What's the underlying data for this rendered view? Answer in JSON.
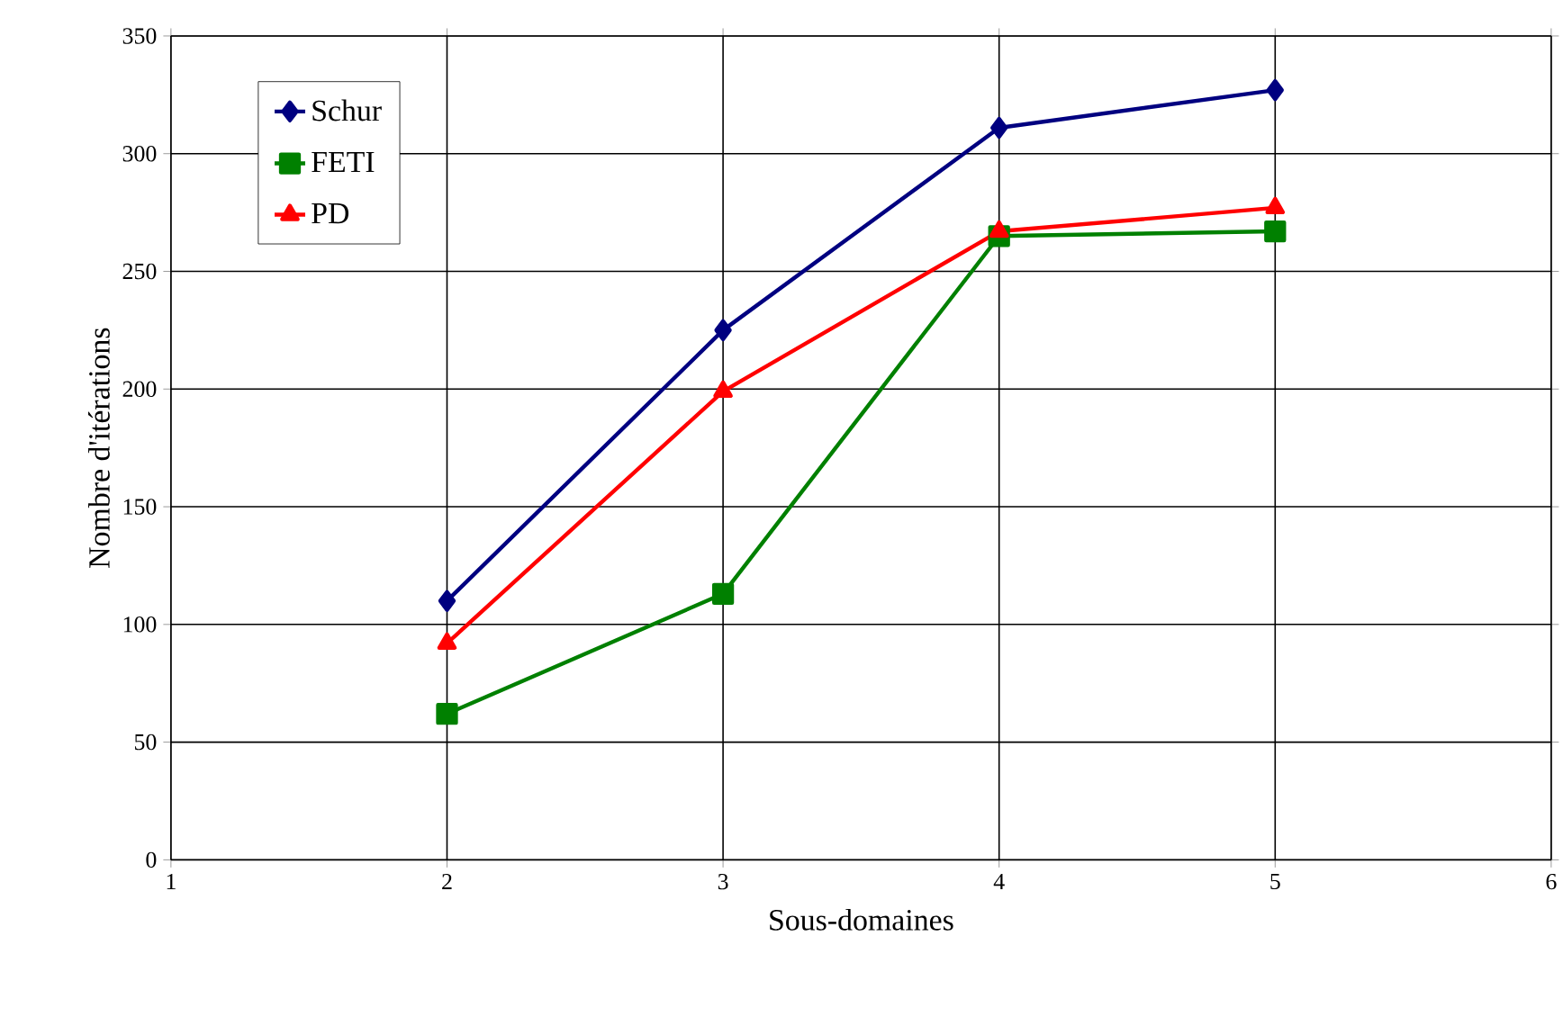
{
  "chart_data": {
    "type": "line",
    "xlabel": "Sous-domaines",
    "ylabel": "Nombre d'itérations",
    "x": [
      2,
      3,
      4,
      5
    ],
    "series": [
      {
        "name": "Schur",
        "color": "#000080",
        "marker": "diamond",
        "values": [
          110,
          225,
          311,
          327
        ]
      },
      {
        "name": "FETI",
        "color": "#008000",
        "marker": "square",
        "values": [
          62,
          113,
          265,
          267
        ]
      },
      {
        "name": "PD",
        "color": "#ff0000",
        "marker": "triangle",
        "values": [
          92,
          199,
          267,
          277
        ]
      }
    ],
    "xlim": [
      1,
      6
    ],
    "xticks": [
      1,
      2,
      3,
      4,
      5,
      6
    ],
    "ylim": [
      0,
      350
    ],
    "yticks": [
      0,
      50,
      100,
      150,
      200,
      250,
      300,
      350
    ],
    "grid": true,
    "legend": "top left",
    "line_style": "solid"
  }
}
